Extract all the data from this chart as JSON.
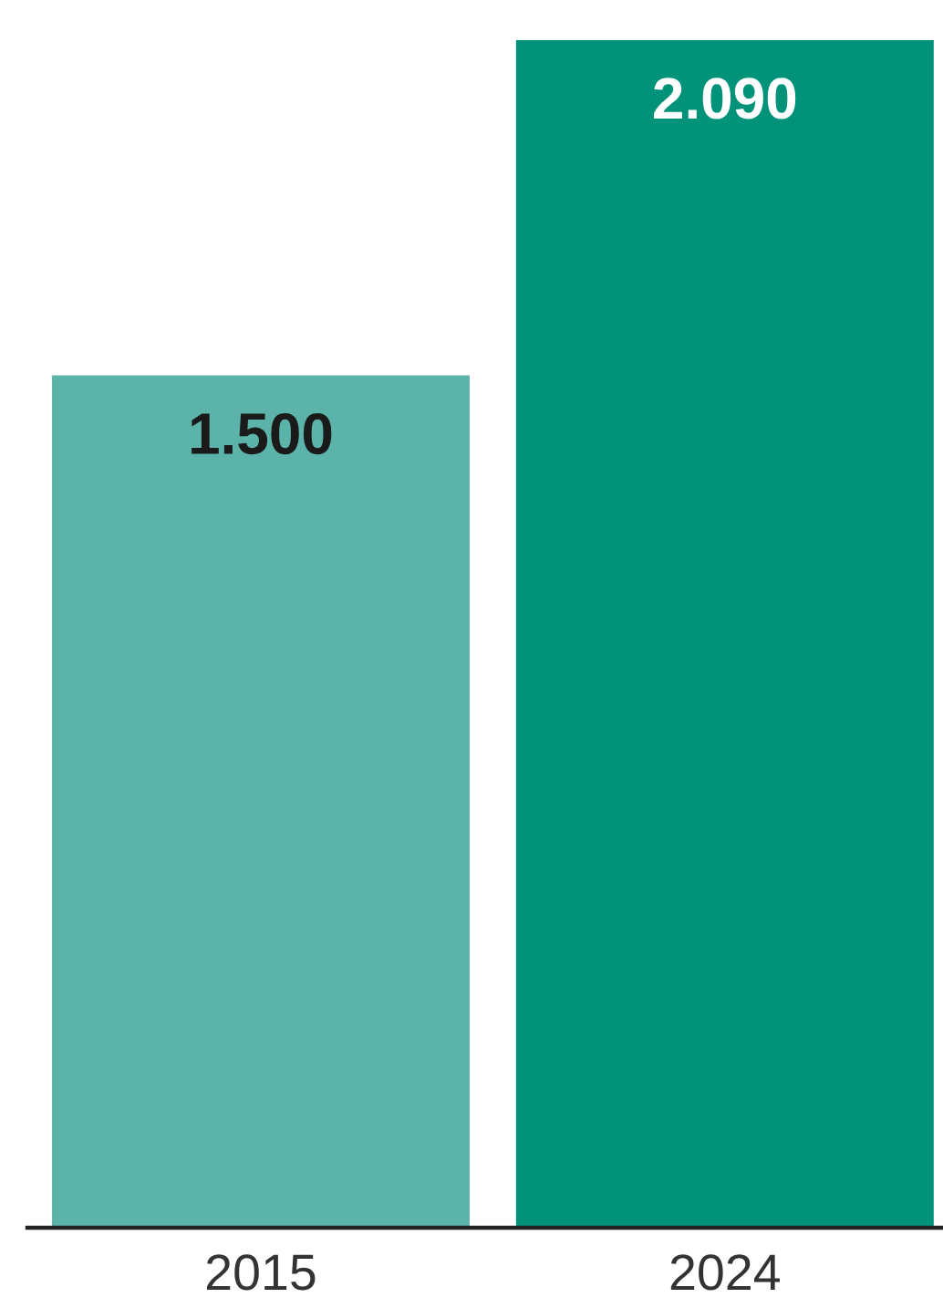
{
  "chart_data": {
    "type": "bar",
    "categories": [
      "2015",
      "2024"
    ],
    "values": [
      1500,
      2090
    ],
    "colors": [
      "#5bb3a9",
      "#00937a"
    ],
    "value_labels": [
      "1.500",
      "2.090"
    ],
    "tick_labels": "x"
  }
}
